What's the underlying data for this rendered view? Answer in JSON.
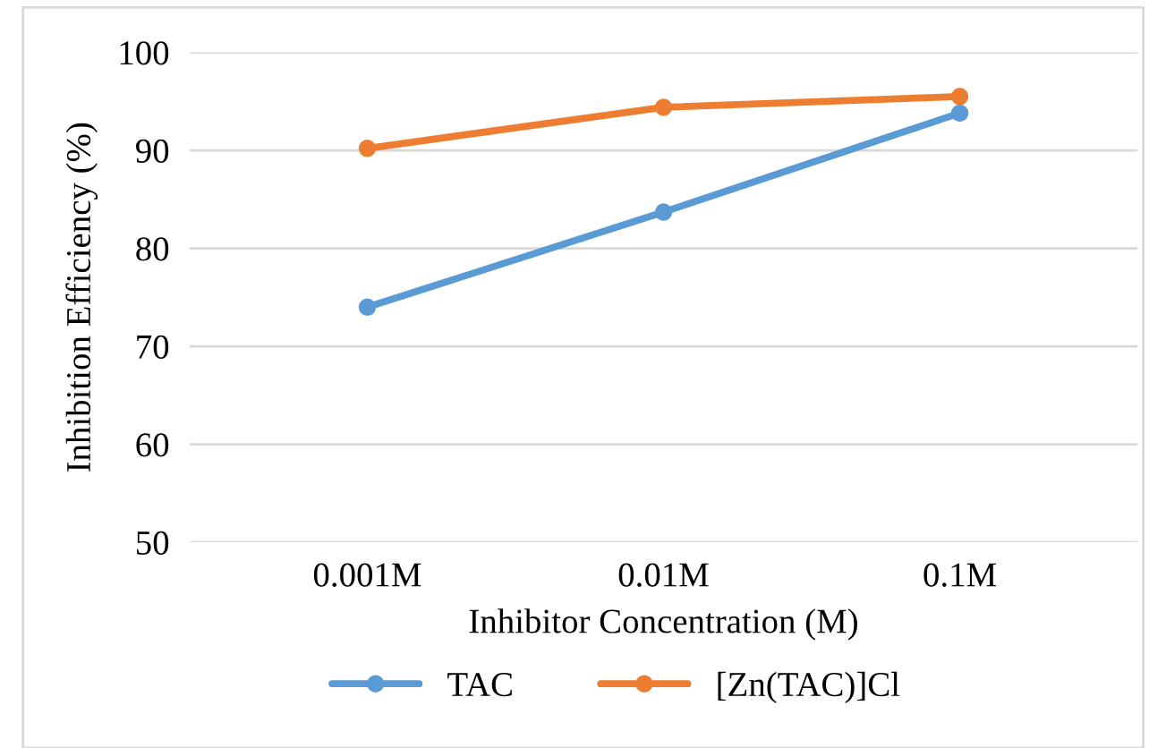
{
  "chart_data": {
    "type": "line",
    "xlabel": "Inhibitor Concentration (M)",
    "ylabel": "Inhibition Efficiency (%)",
    "categories": [
      "0.001M",
      "0.01M",
      "0.1M"
    ],
    "series": [
      {
        "name": "TAC",
        "color": "#5b9bd5",
        "values": [
          74.0,
          83.7,
          93.8
        ]
      },
      {
        "name": "[Zn(TAC)]Cl",
        "color": "#ed7d31",
        "values": [
          90.2,
          94.4,
          95.5
        ]
      }
    ],
    "ylim": [
      50,
      100
    ],
    "yticks": [
      50,
      60,
      70,
      80,
      90,
      100
    ],
    "grid": "y",
    "legend": "bottom",
    "marker": "circle",
    "line_style": "solid"
  }
}
